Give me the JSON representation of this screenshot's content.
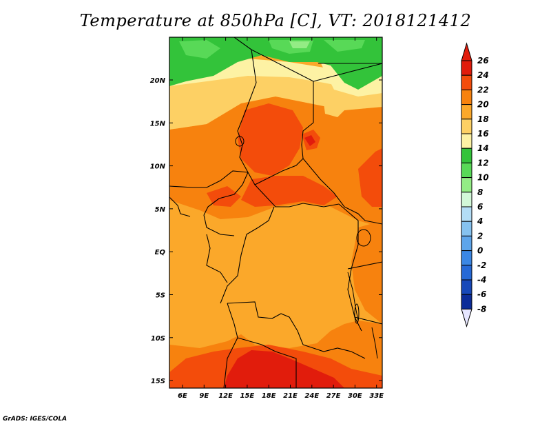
{
  "title": "Temperature at 850hPa [C], VT: 2018121412",
  "credit": "GrADS: IGES/COLA",
  "map": {
    "lat_labels": [
      "20N",
      "15N",
      "10N",
      "5N",
      "EQ",
      "5S",
      "10S",
      "15S"
    ],
    "lon_labels": [
      "6E",
      "9E",
      "12E",
      "15E",
      "18E",
      "21E",
      "24E",
      "27E",
      "30E",
      "33E"
    ]
  },
  "colorbar": {
    "labels": [
      "26",
      "24",
      "22",
      "20",
      "18",
      "16",
      "14",
      "12",
      "10",
      "8",
      "6",
      "4",
      "2",
      "0",
      "-2",
      "-4",
      "-6",
      "-8"
    ],
    "colors": [
      "#e11c0c",
      "#f34c0b",
      "#f7820e",
      "#fba82a",
      "#fdd064",
      "#fdf2a4",
      "#33c33a",
      "#58d957",
      "#93ec85",
      "#d2f8d8",
      "#b3ddf6",
      "#86c2ef",
      "#5ea5ea",
      "#3b87e4",
      "#2669d6",
      "#1748b9",
      "#0c2c99",
      "#06166f"
    ]
  }
}
